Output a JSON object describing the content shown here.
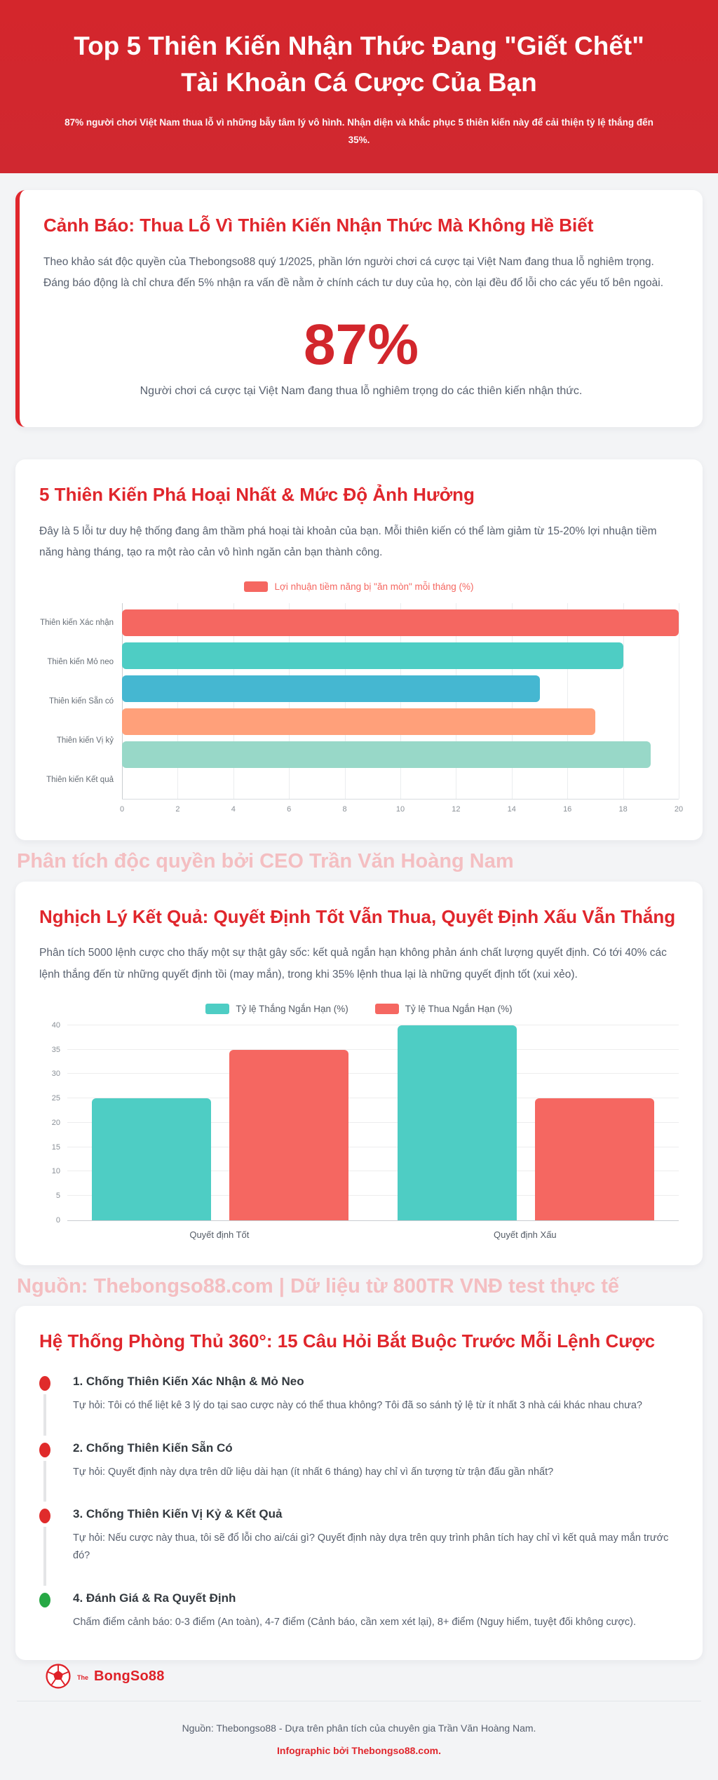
{
  "header": {
    "title": "Top 5 Thiên Kiến Nhận Thức Đang \"Giết Chết\" Tài Khoản Cá Cược Của Bạn",
    "subtitle": "87% người chơi Việt Nam thua lỗ vì những bẫy tâm lý vô hình. Nhận diện và khắc phục 5 thiên kiến này để cải thiện tỷ lệ thắng đến 35%."
  },
  "warning_card": {
    "title": "Cảnh Báo: Thua Lỗ Vì Thiên Kiến Nhận Thức Mà Không Hề Biết",
    "body": "Theo khảo sát độc quyền của Thebongso88 quý 1/2025, phần lớn người chơi cá cược tại Việt Nam đang thua lỗ nghiêm trọng. Đáng báo động là chỉ chưa đến 5% nhận ra vấn đề nằm ở chính cách tư duy của họ, còn lại đều đổ lỗi cho các yếu tố bên ngoài.",
    "stat_value": "87%",
    "stat_caption": "Người chơi cá cược tại Việt Nam đang thua lỗ nghiêm trọng do các thiên kiến nhận thức."
  },
  "bias_card": {
    "title": "5 Thiên Kiến Phá Hoại Nhất & Mức Độ Ảnh Hưởng",
    "body": "Đây là 5 lỗi tư duy hệ thống đang âm thầm phá hoại tài khoản của bạn. Mỗi thiên kiến có thể làm giảm từ 15-20% lợi nhuận tiềm năng hàng tháng, tạo ra một rào cản vô hình ngăn cản bạn thành công."
  },
  "paradox_card": {
    "title": "Nghịch Lý Kết Quả: Quyết Định Tốt Vẫn Thua, Quyết Định Xấu Vẫn Thắng",
    "body": "Phân tích 5000 lệnh cược cho thấy một sự thật gây sốc: kết quả ngắn hạn không phản ánh chất lượng quyết định. Có tới 40% các lệnh thắng đến từ những quyết định tồi (may mắn), trong khi 35% lệnh thua lại là những quyết định tốt (xui xẻo)."
  },
  "watermarks": [
    "Phân tích độc quyền bởi CEO Trần Văn Hoàng Nam",
    "Nguồn: Thebongso88.com | Dữ liệu từ 800TR VNĐ test thực tế"
  ],
  "defense_card": {
    "title": "Hệ Thống Phòng Thủ 360°: 15 Câu Hỏi Bắt Buộc Trước Mỗi Lệnh Cược",
    "steps": [
      {
        "title": "1. Chống Thiên Kiến Xác Nhận & Mỏ Neo",
        "text": "Tự hỏi: Tôi có thể liệt kê 3 lý do tại sao cược này có thể thua không? Tôi đã so sánh tỷ lệ từ ít nhất 3 nhà cái khác nhau chưa?",
        "bullet_color": "#e02b2b"
      },
      {
        "title": "2. Chống Thiên Kiến Sẵn Có",
        "text": "Tự hỏi: Quyết định này dựa trên dữ liệu dài hạn (ít nhất 6 tháng) hay chỉ vì ấn tượng từ trận đấu gần nhất?",
        "bullet_color": "#e02b2b"
      },
      {
        "title": "3. Chống Thiên Kiến Vị Kỷ & Kết Quả",
        "text": "Tự hỏi: Nếu cược này thua, tôi sẽ đổ lỗi cho ai/cái gì? Quyết định này dựa trên quy trình phân tích hay chỉ vì kết quả may mắn trước đó?",
        "bullet_color": "#e02b2b"
      },
      {
        "title": "4. Đánh Giá & Ra Quyết Định",
        "text": "Chấm điểm cảnh báo: 0-3 điểm (An toàn), 4-7 điểm (Cảnh báo, cần xem xét lại), 8+ điểm (Nguy hiểm, tuyệt đối không cược).",
        "bullet_color": "#27a845"
      }
    ]
  },
  "footer": {
    "logo": {
      "icon": "soccer-ball-icon",
      "brand_prefix": "The",
      "brand_name": "BongSo88"
    },
    "source_line": "Nguồn: Thebongso88 - Dựa trên phân tích của chuyên gia Trần Văn Hoàng Nam.",
    "credit_line": "Infographic bởi Thebongso88.com."
  },
  "colors": {
    "header_red": "#d2262c",
    "title_red": "#e0262c",
    "text_gray": "#58606e",
    "watermark_pink": "#f4bec1",
    "page_bg": "#f3f4f6",
    "bullet_red": "#e02b2b",
    "bullet_green": "#27a845"
  },
  "chart_data": [
    {
      "type": "bar",
      "orientation": "horizontal",
      "title": "5 Thiên Kiến Phá Hoại Nhất & Mức Độ Ảnh Hưởng",
      "legend": "Lợi nhuận tiềm năng bị \"ăn mòn\" mỗi tháng (%)",
      "legend_color": "#f56761",
      "categories": [
        "Thiên kiến Xác nhận",
        "Thiên kiến Mỏ neo",
        "Thiên kiến Sẵn có",
        "Thiên kiến Vị kỷ",
        "Thiên kiến Kết quả"
      ],
      "values": [
        20,
        18,
        15,
        17,
        19
      ],
      "bar_colors": [
        "#f56761",
        "#4ecdc4",
        "#45b7d1",
        "#ffa07a",
        "#98d8c8"
      ],
      "xlim": [
        0,
        20
      ],
      "xticks": [
        0,
        2,
        4,
        6,
        8,
        10,
        12,
        14,
        16,
        18,
        20
      ],
      "grid": true,
      "legend_position": "top"
    },
    {
      "type": "bar",
      "orientation": "vertical",
      "title": "Nghịch Lý Kết Quả",
      "categories": [
        "Quyết định Tốt",
        "Quyết định Xấu"
      ],
      "series": [
        {
          "name": "Tỷ lệ Thắng Ngắn Hạn (%)",
          "color": "#4ecdc4",
          "values": [
            25,
            40
          ]
        },
        {
          "name": "Tỷ lệ Thua Ngắn Hạn (%)",
          "color": "#f56761",
          "values": [
            35,
            25
          ]
        }
      ],
      "ylim": [
        0,
        40
      ],
      "yticks": [
        0,
        5,
        10,
        15,
        20,
        25,
        30,
        35,
        40
      ],
      "grid": true,
      "legend_position": "top"
    }
  ]
}
